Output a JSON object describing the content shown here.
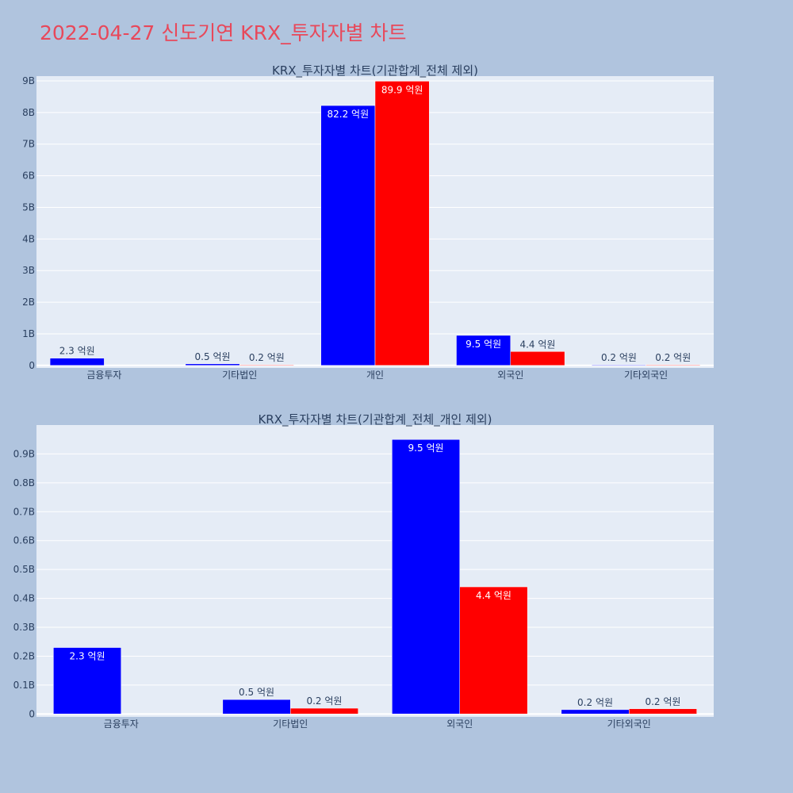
{
  "page_title": "2022-04-27 신도기연 KRX_투자자별 차트",
  "colors": {
    "background": "#b0c4de",
    "plot_bg": "#e5ecf6",
    "title": "#e8485a",
    "series_a": "#0000ff",
    "series_b": "#ff0000",
    "text": "#2a3f5f"
  },
  "chart_data": [
    {
      "type": "bar",
      "title": "KRX_투자자별 차트(기관합계_전체 제외)",
      "categories": [
        "금융투자",
        "기타법인",
        "개인",
        "외국인",
        "기타외국인"
      ],
      "series": [
        {
          "values": [
            230000000,
            50000000,
            8220000000,
            950000000,
            20000000
          ],
          "labels": [
            "2.3 억원",
            "0.5 억원",
            "82.2 억원",
            "9.5 억원",
            "0.2 억원"
          ],
          "color": "#0000ff"
        },
        {
          "values": [
            null,
            20000000,
            8990000000,
            440000000,
            20000000
          ],
          "labels": [
            "",
            "0.2 억원",
            "89.9 억원",
            "4.4 억원",
            "0.2 억원"
          ],
          "color": "#ff0000"
        }
      ],
      "yticks": [
        0,
        1000000000,
        2000000000,
        3000000000,
        4000000000,
        5000000000,
        6000000000,
        7000000000,
        8000000000,
        9000000000
      ],
      "yticklabels": [
        "0",
        "1B",
        "2B",
        "3B",
        "4B",
        "5B",
        "6B",
        "7B",
        "8B",
        "9B"
      ],
      "ylim": [
        -80000000,
        9150000000
      ],
      "grid": true
    },
    {
      "type": "bar",
      "title": "KRX_투자자별 차트(기관합계_전체_개인 제외)",
      "categories": [
        "금융투자",
        "기타법인",
        "외국인",
        "기타외국인"
      ],
      "series": [
        {
          "values": [
            230000000,
            50000000,
            950000000,
            15000000
          ],
          "labels": [
            "2.3 억원",
            "0.5 억원",
            "9.5 억원",
            "0.2 억원"
          ],
          "color": "#0000ff"
        },
        {
          "values": [
            null,
            20000000,
            440000000,
            18000000
          ],
          "labels": [
            "",
            "0.2 억원",
            "4.4 억원",
            "0.2 억원"
          ],
          "color": "#ff0000"
        }
      ],
      "yticks": [
        0,
        100000000,
        200000000,
        300000000,
        400000000,
        500000000,
        600000000,
        700000000,
        800000000,
        900000000
      ],
      "yticklabels": [
        "0",
        "0.1B",
        "0.2B",
        "0.3B",
        "0.4B",
        "0.5B",
        "0.6B",
        "0.7B",
        "0.8B",
        "0.9B"
      ],
      "ylim": [
        -10000000,
        1000000000
      ],
      "grid": true
    }
  ]
}
